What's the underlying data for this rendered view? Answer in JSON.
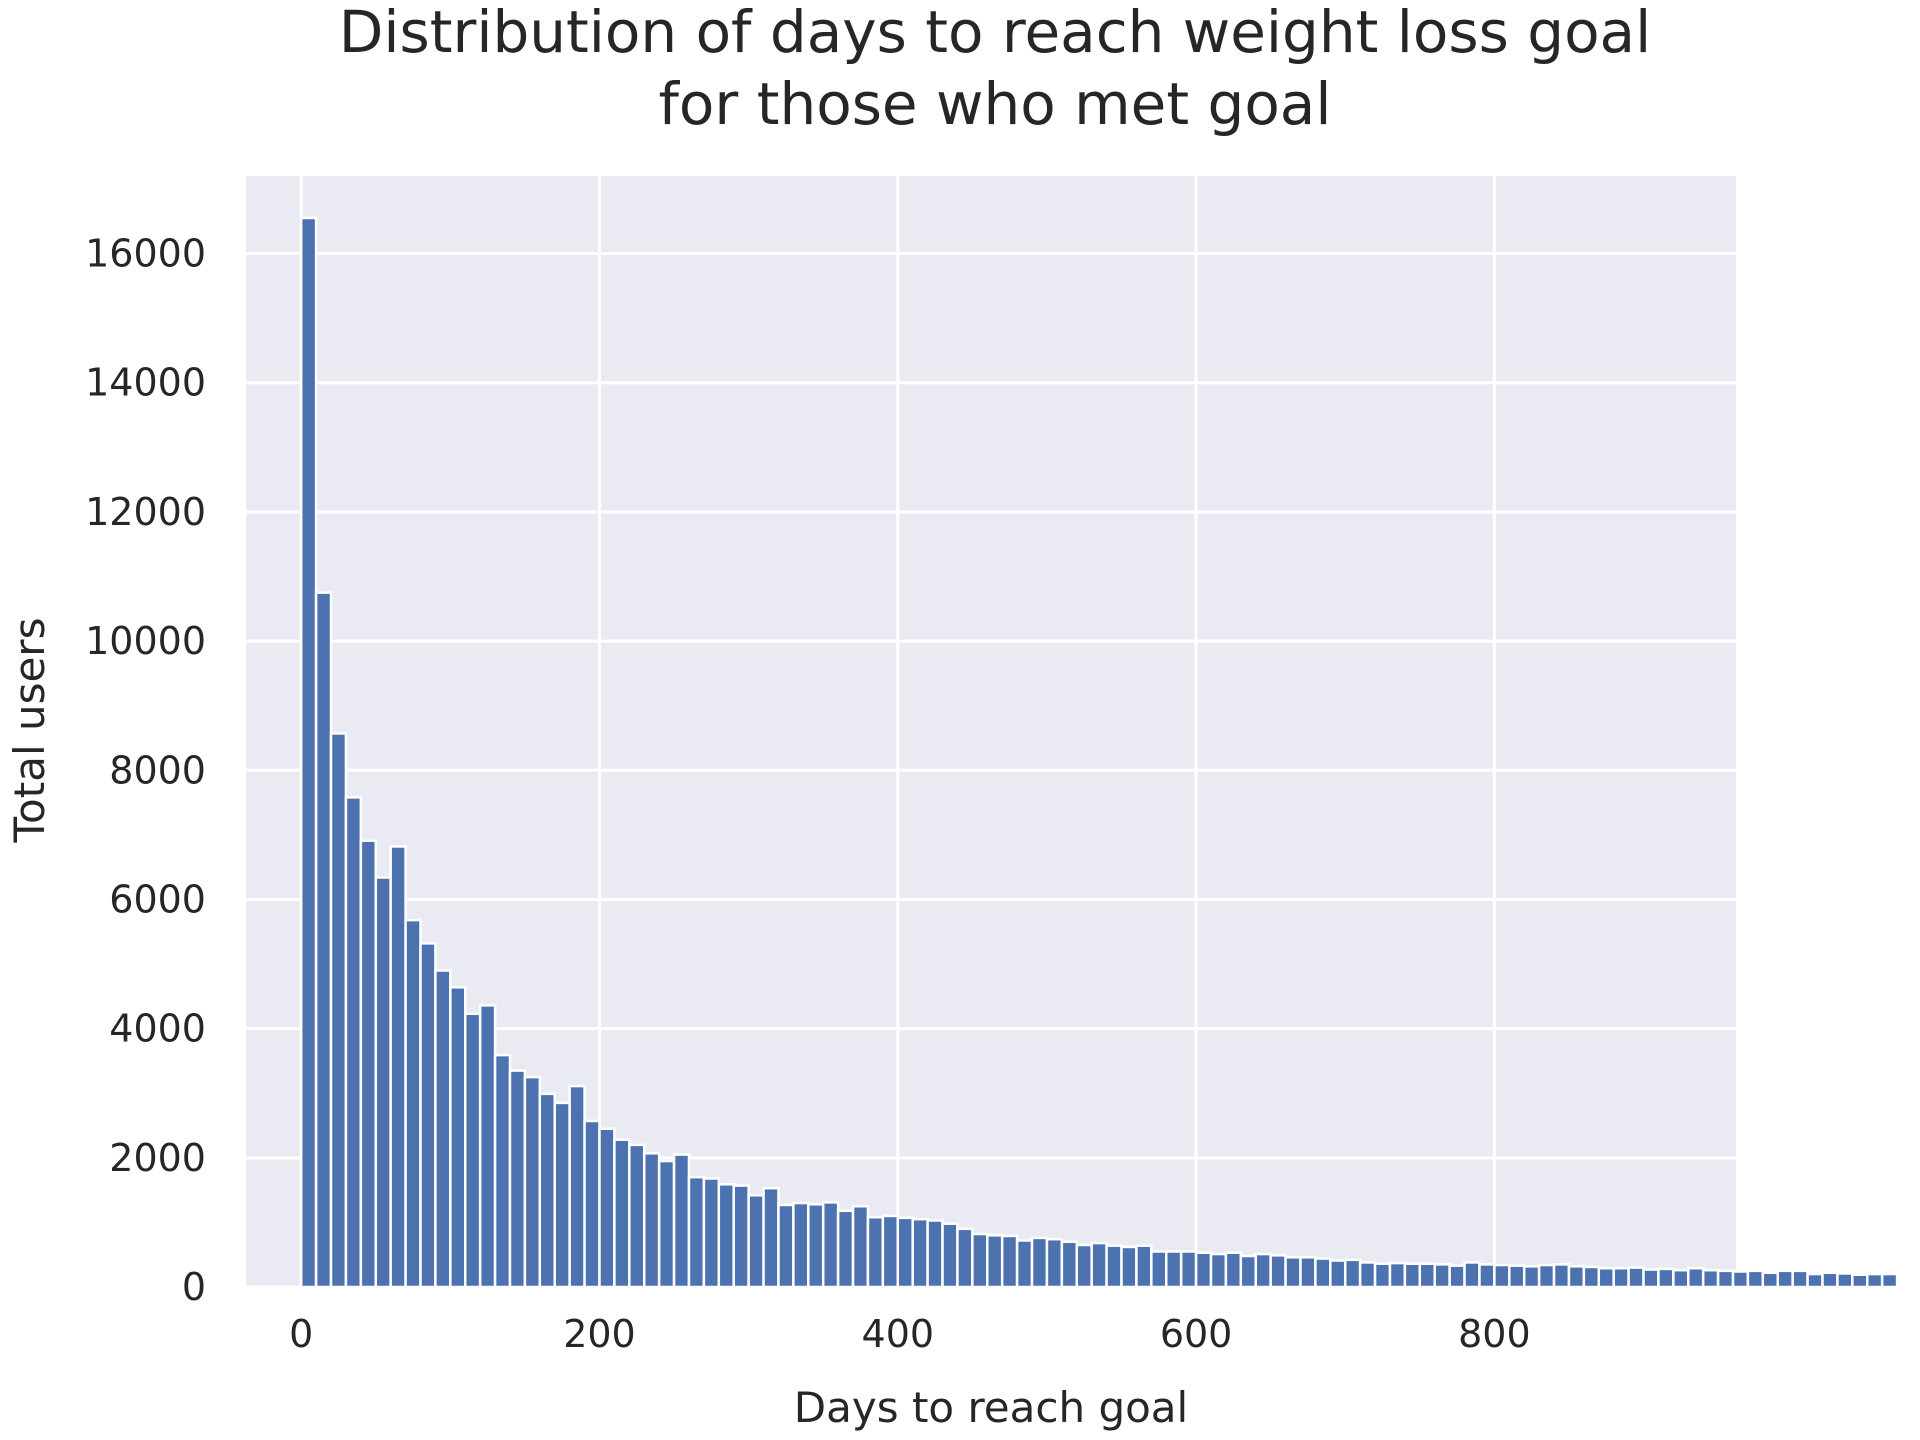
{
  "chart_data": {
    "type": "bar",
    "title_lines": [
      "Distribution of days to reach weight loss goal",
      "for those who met goal"
    ],
    "xlabel": "Days to reach goal",
    "ylabel": "Total users",
    "xlim": [
      -37,
      962
    ],
    "ylim": [
      0,
      17200
    ],
    "x_ticks": [
      0,
      200,
      400,
      600,
      800
    ],
    "y_ticks": [
      0,
      2000,
      4000,
      6000,
      8000,
      10000,
      12000,
      14000,
      16000
    ],
    "grid": true,
    "bin_start": 0,
    "bin_width": 10,
    "values": [
      16550,
      10750,
      8570,
      7580,
      6910,
      6340,
      6820,
      5680,
      5320,
      4900,
      4640,
      4230,
      4360,
      3590,
      3350,
      3250,
      2990,
      2850,
      3110,
      2570,
      2450,
      2280,
      2200,
      2070,
      1950,
      2050,
      1700,
      1680,
      1590,
      1570,
      1420,
      1530,
      1270,
      1300,
      1280,
      1310,
      1180,
      1250,
      1080,
      1100,
      1070,
      1050,
      1030,
      980,
      900,
      820,
      800,
      790,
      720,
      760,
      740,
      700,
      650,
      680,
      640,
      620,
      640,
      550,
      550,
      550,
      530,
      510,
      530,
      480,
      510,
      490,
      460,
      460,
      440,
      410,
      420,
      380,
      360,
      370,
      360,
      360,
      350,
      330,
      380,
      350,
      340,
      330,
      320,
      340,
      350,
      320,
      310,
      290,
      290,
      300,
      270,
      280,
      260,
      290,
      260,
      250,
      240,
      250,
      220,
      250,
      250,
      200,
      220,
      210,
      190,
      200,
      200
    ]
  },
  "colors": {
    "bar": "#4c72b0",
    "bar_edge": "#ffffff",
    "plot_bg": "#eaeaf2",
    "grid": "#ffffff",
    "text": "#262626"
  }
}
